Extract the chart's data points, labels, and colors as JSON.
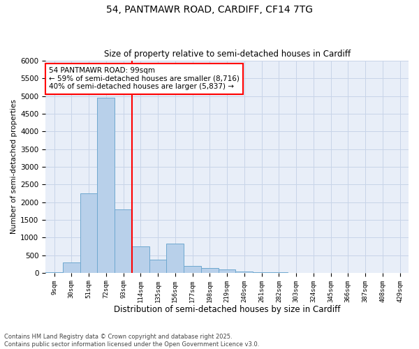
{
  "title_line1": "54, PANTMAWR ROAD, CARDIFF, CF14 7TG",
  "title_line2": "Size of property relative to semi-detached houses in Cardiff",
  "xlabel": "Distribution of semi-detached houses by size in Cardiff",
  "ylabel": "Number of semi-detached properties",
  "categories": [
    "9sqm",
    "30sqm",
    "51sqm",
    "72sqm",
    "93sqm",
    "114sqm",
    "135sqm",
    "156sqm",
    "177sqm",
    "198sqm",
    "219sqm",
    "240sqm",
    "261sqm",
    "282sqm",
    "303sqm",
    "324sqm",
    "345sqm",
    "366sqm",
    "387sqm",
    "408sqm",
    "429sqm"
  ],
  "values": [
    10,
    300,
    2250,
    4950,
    1800,
    750,
    370,
    820,
    200,
    130,
    90,
    45,
    20,
    10,
    5,
    5,
    5,
    5,
    0,
    0,
    0
  ],
  "bar_color": "#b8d0ea",
  "bar_edge_color": "#6fa8d0",
  "vline_x_index": 4,
  "vline_color": "red",
  "annotation_text": "54 PANTMAWR ROAD: 99sqm\n← 59% of semi-detached houses are smaller (8,716)\n40% of semi-detached houses are larger (5,837) →",
  "annotation_boxcolor": "white",
  "annotation_edgecolor": "red",
  "ylim": [
    0,
    6000
  ],
  "yticks": [
    0,
    500,
    1000,
    1500,
    2000,
    2500,
    3000,
    3500,
    4000,
    4500,
    5000,
    5500,
    6000
  ],
  "grid_color": "#c8d4e8",
  "bg_color": "#e8eef8",
  "footnote": "Contains HM Land Registry data © Crown copyright and database right 2025.\nContains public sector information licensed under the Open Government Licence v3.0."
}
